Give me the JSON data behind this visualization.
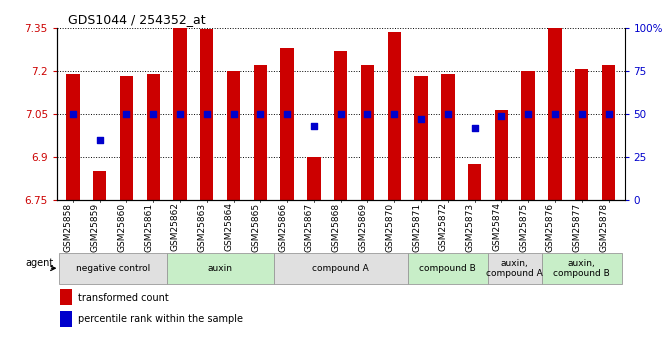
{
  "title": "GDS1044 / 254352_at",
  "samples": [
    "GSM25858",
    "GSM25859",
    "GSM25860",
    "GSM25861",
    "GSM25862",
    "GSM25863",
    "GSM25864",
    "GSM25865",
    "GSM25866",
    "GSM25867",
    "GSM25868",
    "GSM25869",
    "GSM25870",
    "GSM25871",
    "GSM25872",
    "GSM25873",
    "GSM25874",
    "GSM25875",
    "GSM25876",
    "GSM25877",
    "GSM25878"
  ],
  "bar_values": [
    7.19,
    6.85,
    7.18,
    7.19,
    7.35,
    7.345,
    7.2,
    7.22,
    7.28,
    6.9,
    7.27,
    7.22,
    7.335,
    7.18,
    7.19,
    6.875,
    7.065,
    7.2,
    7.35,
    7.205,
    7.22
  ],
  "dot_values": [
    50,
    35,
    50,
    50,
    50,
    50,
    50,
    50,
    50,
    43,
    50,
    50,
    50,
    47,
    50,
    42,
    49,
    50,
    50,
    50,
    50
  ],
  "ylim_left": [
    6.75,
    7.35
  ],
  "ylim_right": [
    0,
    100
  ],
  "yticks_left": [
    6.75,
    6.9,
    7.05,
    7.2,
    7.35
  ],
  "yticks_right": [
    0,
    25,
    50,
    75,
    100
  ],
  "ytick_labels_right": [
    "0",
    "25",
    "50",
    "75",
    "100%"
  ],
  "bar_color": "#cc0000",
  "dot_color": "#0000cc",
  "agent_groups": [
    {
      "label": "negative control",
      "start": 0,
      "end": 4,
      "color": "#e0e0e0"
    },
    {
      "label": "auxin",
      "start": 4,
      "end": 8,
      "color": "#c8eec8"
    },
    {
      "label": "compound A",
      "start": 8,
      "end": 13,
      "color": "#e0e0e0"
    },
    {
      "label": "compound B",
      "start": 13,
      "end": 16,
      "color": "#c8eec8"
    },
    {
      "label": "auxin,\ncompound A",
      "start": 16,
      "end": 18,
      "color": "#e0e0e0"
    },
    {
      "label": "auxin,\ncompound B",
      "start": 18,
      "end": 21,
      "color": "#c8eec8"
    }
  ],
  "legend_items": [
    {
      "label": "transformed count",
      "color": "#cc0000"
    },
    {
      "label": "percentile rank within the sample",
      "color": "#0000cc"
    }
  ]
}
